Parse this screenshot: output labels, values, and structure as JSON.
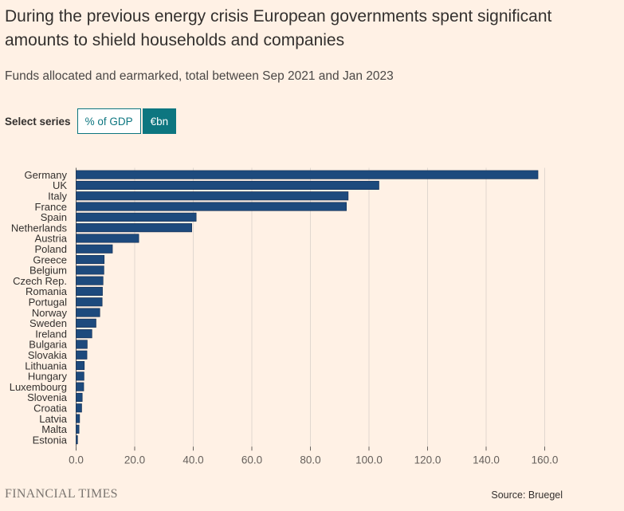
{
  "header": {
    "title": "During the previous energy crisis European governments spent significant amounts to shield households and companies",
    "subtitle": "Funds allocated and earmarked, total between Sep 2021 and Jan 2023"
  },
  "controls": {
    "select_label": "Select series",
    "options": [
      "% of GDP",
      "€bn"
    ],
    "selected": "€bn"
  },
  "chart_data": {
    "type": "bar",
    "orientation": "horizontal",
    "categories": [
      "Germany",
      "UK",
      "Italy",
      "France",
      "Spain",
      "Netherlands",
      "Austria",
      "Poland",
      "Greece",
      "Belgium",
      "Czech Rep.",
      "Romania",
      "Portugal",
      "Norway",
      "Sweden",
      "Ireland",
      "Bulgaria",
      "Slovakia",
      "Lithuania",
      "Hungary",
      "Luxembourg",
      "Slovenia",
      "Croatia",
      "Latvia",
      "Malta",
      "Estonia"
    ],
    "values": [
      157.7,
      103.4,
      92.9,
      92.3,
      41.0,
      39.5,
      21.4,
      12.4,
      9.6,
      9.5,
      9.2,
      9.0,
      8.9,
      8.1,
      6.8,
      5.4,
      3.8,
      3.7,
      2.8,
      2.7,
      2.6,
      2.1,
      1.9,
      1.2,
      1.0,
      0.5
    ],
    "xticks": [
      "0.0",
      "20.0",
      "40.0",
      "60.0",
      "80.0",
      "100.0",
      "120.0",
      "140.0",
      "160.0"
    ],
    "xlim": [
      0,
      160
    ],
    "grid": true,
    "bar_color": "#1d4a7d",
    "grid_color": "#e0d7cf"
  },
  "footer": {
    "brand": "FINANCIAL TIMES",
    "source": "Source: Bruegel"
  }
}
